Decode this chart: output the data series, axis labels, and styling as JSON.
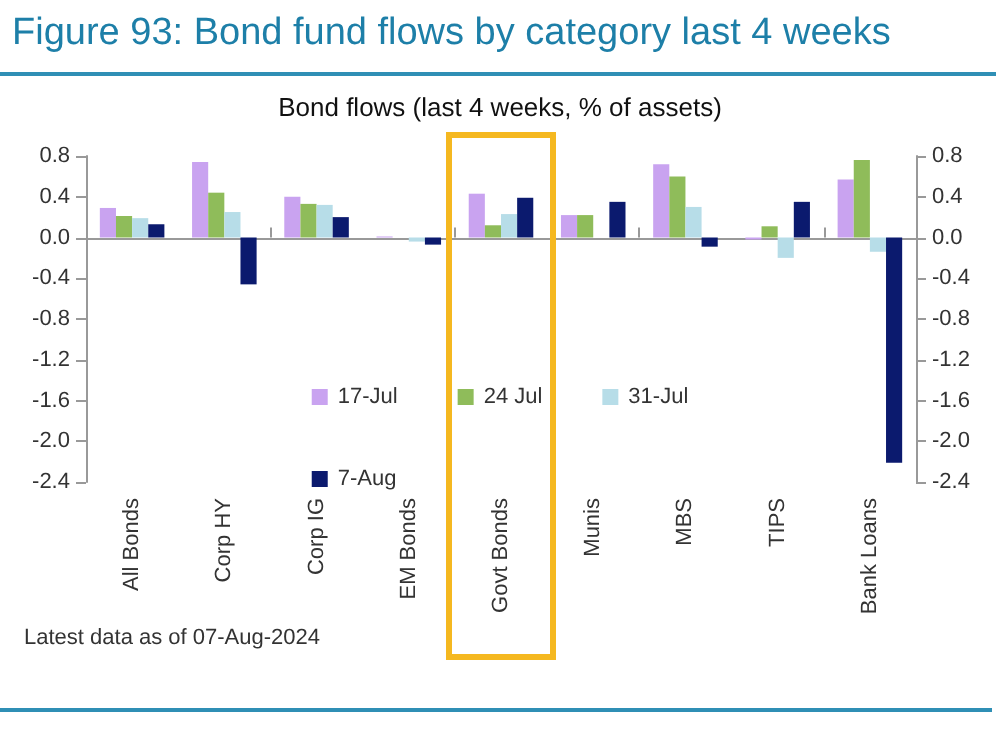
{
  "chart_data": {
    "type": "bar",
    "title": "Figure 93: Bond fund flows by category last 4 weeks",
    "subtitle": "Bond flows (last 4 weeks, % of assets)",
    "categories": [
      "All Bonds",
      "Corp HY",
      "Corp IG",
      "EM Bonds",
      "Govt Bonds",
      "Munis",
      "MBS",
      "TIPS",
      "Bank Loans"
    ],
    "series": [
      {
        "name": "17-Jul",
        "color": "#c9a3f0",
        "values": [
          0.29,
          0.74,
          0.4,
          0.01,
          0.43,
          0.22,
          0.72,
          -0.02,
          0.57
        ]
      },
      {
        "name": "24 Jul",
        "color": "#8fbc5a",
        "values": [
          0.21,
          0.44,
          0.33,
          0.0,
          0.12,
          0.22,
          0.6,
          0.11,
          0.76
        ]
      },
      {
        "name": "31-Jul",
        "color": "#b7dde8",
        "values": [
          0.19,
          0.25,
          0.32,
          -0.04,
          0.23,
          null,
          0.3,
          -0.2,
          -0.14
        ]
      },
      {
        "name": "7-Aug",
        "color": "#0b1a6e",
        "values": [
          0.13,
          -0.46,
          0.2,
          -0.07,
          0.39,
          0.35,
          -0.09,
          0.35,
          -2.21
        ]
      }
    ],
    "ylim": [
      -2.4,
      0.8
    ],
    "yticks": [
      -2.4,
      {
        "value": -2,
        "label": "-2.0"
      },
      -1.6,
      -1.2,
      -0.8,
      -0.4,
      {
        "value": 0,
        "label": "0.0"
      },
      0.4,
      0.8
    ],
    "y2lim": [
      -2.4,
      0.8
    ],
    "y2ticks": [
      -2.4,
      {
        "value": -2,
        "label": "-2.0"
      },
      -1.6,
      -1.2,
      -0.8,
      -0.4,
      {
        "value": 0,
        "label": "0.0"
      },
      0.4,
      0.8
    ],
    "annotations": [
      "Latest data as of 07-Aug-2024"
    ],
    "legend": "center"
  }
}
